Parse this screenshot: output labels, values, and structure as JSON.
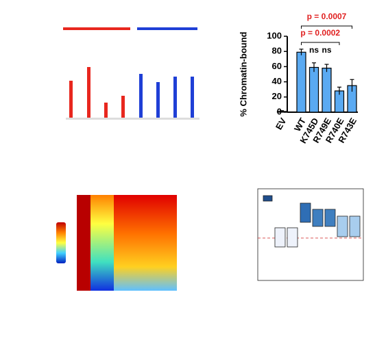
{
  "chart_data": {
    "type": "bar",
    "y_label": "% Chromatin-bound",
    "categories": [
      "EV",
      "WT",
      "K745D",
      "R749E",
      "R740E",
      "R743E"
    ],
    "values": [
      1,
      79,
      59,
      58,
      28,
      35
    ],
    "errors": [
      1,
      4,
      6,
      5,
      5,
      8
    ],
    "color": "#5aaaf2",
    "ylim": [
      0,
      100
    ],
    "yticks": [
      0,
      20,
      40,
      60,
      80,
      100
    ],
    "annotations": [
      "p = 0.0007",
      "p = 0.0002",
      "ns",
      "ns"
    ]
  }
}
